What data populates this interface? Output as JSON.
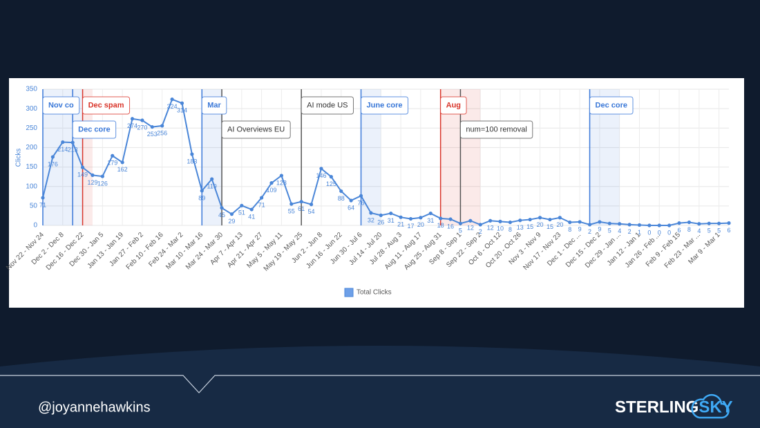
{
  "chart_data": {
    "type": "line",
    "y_label": "Clicks",
    "categories": [
      "Nov 22 - Nov 24",
      null,
      "Dec 2 - Dec 8",
      null,
      "Dec 16 - Dec 22",
      null,
      "Dec 30 - Jan 5",
      null,
      "Jan 13 - Jan 19",
      null,
      "Jan 27 - Feb 2",
      null,
      "Feb 10 - Feb 16",
      null,
      "Feb 24 - Mar 2",
      null,
      "Mar 10 - Mar 16",
      null,
      "Mar 24 - Mar 30",
      null,
      "Apr 7 - Apr 13",
      null,
      "Apr 21 - Apr 27",
      null,
      "May 5 - May 11",
      null,
      "May 19 - May 25",
      null,
      "Jun 2 - Jun 8",
      null,
      "Jun 16 - Jun 22",
      null,
      "Jun 30 - Jul 6",
      null,
      "Jul 14 - Jul 20",
      null,
      "Jul 28 - Aug 3",
      null,
      "Aug 11 - Aug 17",
      null,
      "Aug 25 - Aug 31",
      null,
      "Sep 8 - Sep 1",
      null,
      "Sep 22 - Sep 2",
      null,
      "Oct 6 - Oct 12",
      null,
      "Oct 20 - Oct 26",
      null,
      "Nov 3 - Nov 9",
      null,
      "Nov 17 - Nov 23",
      null,
      "Dec 1 - Dec ...",
      null,
      "Dec 15 - Dec 2",
      null,
      "Dec 29 - Jan ...",
      null,
      "Jan 12 - Jan 1",
      null,
      "Jan 26 - Feb ...",
      null,
      "Feb 9 - Feb 15",
      null,
      "Feb 23 - Mar ...",
      null,
      "Mar 9 - Mar 1",
      null
    ],
    "series": [
      {
        "name": "Total Clicks",
        "color": "#4a86d8",
        "values": [
          71,
          176,
          214,
          213,
          149,
          129,
          126,
          179,
          162,
          274,
          270,
          253,
          256,
          324,
          314,
          183,
          89,
          119,
          45,
          29,
          51,
          41,
          71,
          109,
          128,
          55,
          61,
          54,
          146,
          125,
          88,
          64,
          76,
          32,
          26,
          31,
          21,
          17,
          20,
          31,
          18,
          16,
          5,
          12,
          2,
          12,
          10,
          8,
          13,
          15,
          20,
          15,
          20,
          8,
          9,
          2,
          9,
          5,
          4,
          2,
          1,
          0,
          0,
          0,
          6,
          8,
          4,
          5,
          5,
          6
        ]
      }
    ],
    "ylim": [
      0,
      350
    ],
    "yticks": [
      0,
      50,
      100,
      150,
      200,
      250,
      300,
      350
    ],
    "grid": true,
    "legend": "bottom",
    "annotations": [
      {
        "label": "Nov co",
        "start": 0,
        "end": 3,
        "color": "#3a78d8"
      },
      {
        "label": "Dec core",
        "start": 3,
        "end": 4,
        "color": "#3a78d8"
      },
      {
        "label": "Dec spam",
        "start": 4,
        "end": 5,
        "color": "#d9352a"
      },
      {
        "label": "Mar",
        "start": 16,
        "end": 18,
        "color": "#3a78d8"
      },
      {
        "label": "AI Overviews EU",
        "start": 18,
        "end": 18,
        "color": "#555555"
      },
      {
        "label": "AI mode US",
        "start": 26,
        "end": 26,
        "color": "#555555"
      },
      {
        "label": "June core",
        "start": 32,
        "end": 34,
        "color": "#3a78d8"
      },
      {
        "label": "Aug",
        "start": 40,
        "end": 44,
        "color": "#d9352a"
      },
      {
        "label": "num=100 removal",
        "start": 42,
        "end": 42,
        "color": "#555555"
      },
      {
        "label": "Dec core",
        "start": 55,
        "end": 58,
        "color": "#3a78d8"
      }
    ]
  },
  "footer": {
    "handle": "@joyannehawkins",
    "logo_left": "STERLING",
    "logo_right": "SKY"
  }
}
